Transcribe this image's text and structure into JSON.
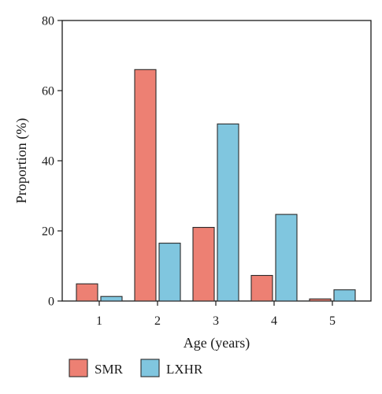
{
  "chart_data": {
    "type": "bar",
    "categories": [
      "1",
      "2",
      "3",
      "4",
      "5"
    ],
    "series": [
      {
        "name": "SMR",
        "color": "#ed8073",
        "values": [
          4.9,
          66.0,
          21.0,
          7.3,
          0.6
        ]
      },
      {
        "name": "LXHR",
        "color": "#80c6df",
        "values": [
          1.3,
          16.5,
          50.5,
          24.7,
          3.2
        ]
      }
    ],
    "xlabel": "Age (years)",
    "ylabel": "Proportion (%)",
    "ylim": [
      0,
      80
    ],
    "yticks": [
      0,
      20,
      40,
      60,
      80
    ],
    "grid": false,
    "legend_position": "bottom-left",
    "bar_edge_color": "#2b2b2b"
  }
}
